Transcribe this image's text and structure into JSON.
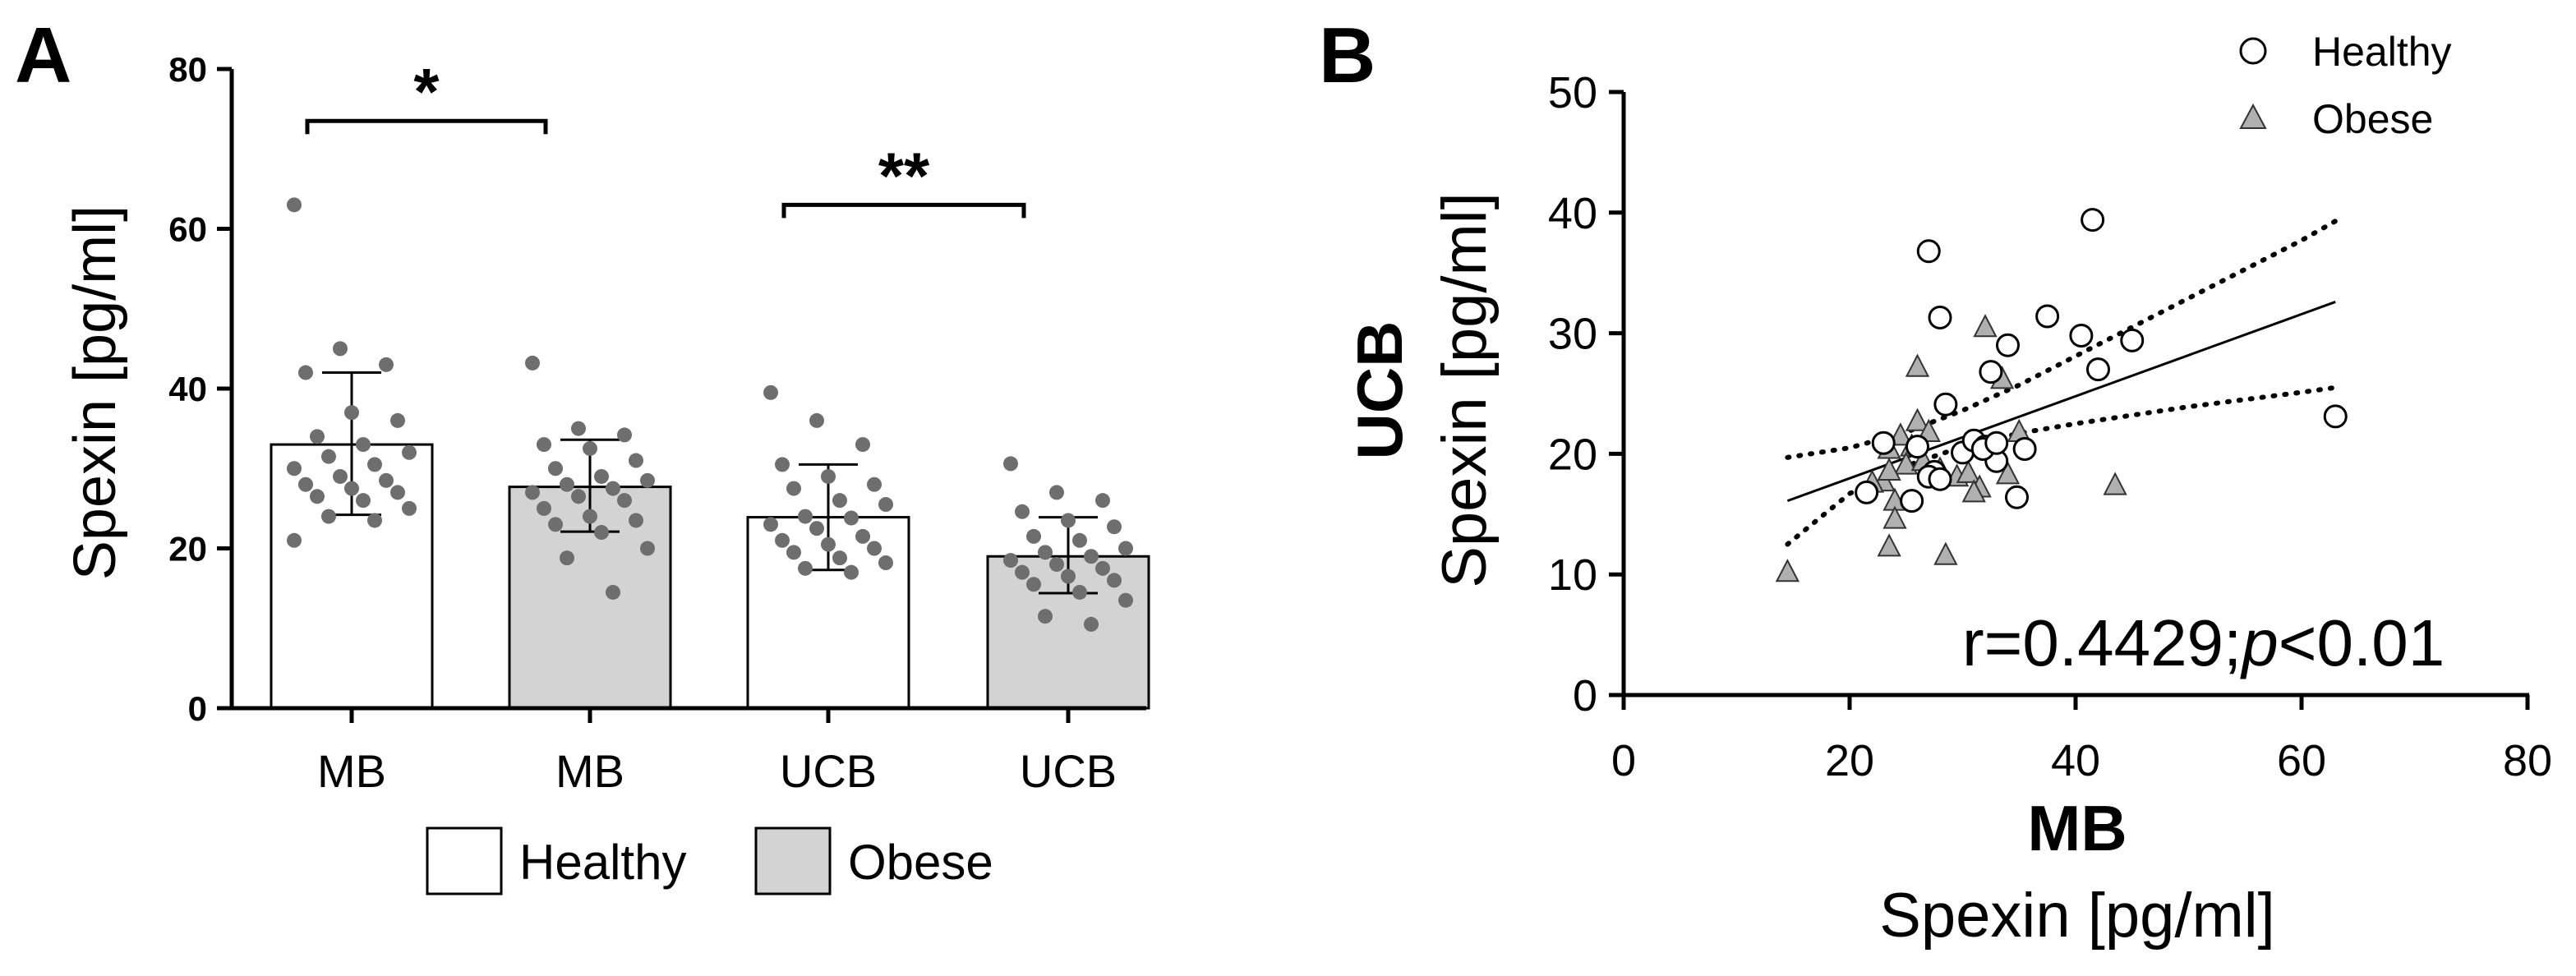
{
  "panel_a": {
    "letter": "A"
  },
  "panel_b": {
    "letter": "B"
  },
  "chart_data": [
    {
      "type": "bar",
      "panel": "A",
      "ylabel": "Spexin [pg/ml]",
      "ylim": [
        0,
        80
      ],
      "yticks": [
        0,
        20,
        40,
        60,
        80
      ],
      "categories": [
        "MB",
        "MB",
        "UCB",
        "UCB"
      ],
      "groups": [
        "Healthy",
        "Obese",
        "Healthy",
        "Obese"
      ],
      "means": [
        33,
        27.7,
        23.9,
        19.0
      ],
      "sd_low": [
        24.2,
        22.1,
        17.3,
        14.4
      ],
      "sd_high": [
        42.0,
        33.6,
        30.5,
        23.9
      ],
      "bar_colors": [
        "#ffffff",
        "#d3d3d3",
        "#ffffff",
        "#d3d3d3"
      ],
      "point_color": "#6e6e6e",
      "points": [
        [
          63,
          45,
          43,
          42,
          37,
          36,
          34,
          33,
          32,
          31.5,
          30.5,
          30,
          29,
          28.5,
          28,
          27.5,
          27,
          26.5,
          26,
          25,
          24,
          23.5,
          21
        ],
        [
          43.2,
          35,
          34.2,
          33,
          32.5,
          31,
          30,
          29,
          28.5,
          28,
          27.5,
          27,
          26.5,
          26,
          25,
          24,
          23.5,
          23,
          22,
          20,
          18.8,
          14.5
        ],
        [
          39.5,
          36,
          33,
          30.5,
          29,
          28,
          27.5,
          26,
          25.5,
          24,
          23.8,
          23,
          22.5,
          21.5,
          21,
          20.5,
          20,
          19.5,
          18.8,
          18.2,
          17.5,
          17
        ],
        [
          30.6,
          27,
          26,
          24.6,
          23.5,
          22.7,
          21.5,
          21,
          20,
          19.5,
          19,
          18.5,
          18,
          17.5,
          17,
          16.5,
          16,
          15.5,
          14.5,
          13.5,
          11.5,
          10.5
        ]
      ],
      "significance": [
        {
          "from": 0,
          "to": 1,
          "label": "*",
          "y": 73.5
        },
        {
          "from": 2,
          "to": 3,
          "label": "**",
          "y": 63
        }
      ],
      "legend": [
        {
          "label": "Healthy",
          "color": "#ffffff"
        },
        {
          "label": "Obese",
          "color": "#d3d3d3"
        }
      ]
    },
    {
      "type": "scatter",
      "panel": "B",
      "xlabel_bold": "MB",
      "xlabel": "Spexin [pg/ml]",
      "ylabel_bold": "UCB",
      "ylabel": "Spexin [pg/ml]",
      "xlim": [
        0,
        80
      ],
      "ylim": [
        0,
        50
      ],
      "xticks": [
        0,
        20,
        40,
        60,
        80
      ],
      "yticks": [
        0,
        10,
        20,
        30,
        40,
        50
      ],
      "annotation_prefix": "r=0.4429;",
      "annotation_p": "p",
      "annotation_suffix": "<0.01",
      "series": [
        {
          "name": "Healthy",
          "marker": "circle",
          "color": "#ffffff",
          "x": [
            27,
            41.5,
            28,
            37.5,
            45,
            40.5,
            34,
            32.5,
            42,
            28.5,
            23,
            26,
            30,
            31,
            32,
            33,
            35.5,
            27.5,
            27,
            21.5,
            25.5,
            34.8,
            63,
            28,
            31.8,
            33
          ],
          "y": [
            36.8,
            39.4,
            31.3,
            31.4,
            29.4,
            29.8,
            29,
            26.8,
            27,
            24.1,
            20.9,
            20.6,
            20.1,
            21.1,
            20.6,
            19.4,
            20.4,
            18.5,
            18.1,
            16.8,
            16.1,
            16.4,
            23.1,
            17.9,
            20.4,
            20.9
          ]
        },
        {
          "name": "Obese",
          "marker": "triangle",
          "color": "#b0b0b0",
          "x": [
            32,
            26,
            33.5,
            26,
            23.5,
            24.5,
            25.5,
            27,
            29.5,
            30.5,
            31.5,
            34,
            35,
            23,
            24,
            24,
            23.5,
            25,
            26.5,
            28,
            22,
            14.5,
            43.5,
            23.5,
            28.5,
            31
          ],
          "y": [
            30.5,
            27.2,
            26.2,
            22.7,
            20.4,
            21.5,
            20.6,
            21.8,
            18.1,
            18.4,
            17.2,
            18.3,
            21.8,
            17.7,
            16.1,
            14.6,
            12.3,
            19.1,
            19.4,
            18.7,
            17.6,
            10.2,
            17.4,
            18.6,
            11.6,
            16.8
          ]
        }
      ],
      "regression": {
        "x": [
          14.5,
          63
        ],
        "y": [
          16.1,
          32.6
        ]
      },
      "ci_lower": {
        "x": [
          14.5,
          20,
          25,
          30,
          35,
          40,
          45,
          50,
          55,
          60,
          63
        ],
        "y": [
          12.5,
          16.7,
          19.0,
          20.6,
          21.7,
          22.5,
          23.2,
          23.9,
          24.5,
          25.1,
          25.5
        ]
      },
      "ci_upper": {
        "x": [
          14.5,
          20,
          25,
          30,
          35,
          40,
          45,
          50,
          55,
          60,
          63
        ],
        "y": [
          19.7,
          20.5,
          21.8,
          23.6,
          25.7,
          28.1,
          30.5,
          32.9,
          35.3,
          37.7,
          39.3
        ]
      }
    }
  ]
}
